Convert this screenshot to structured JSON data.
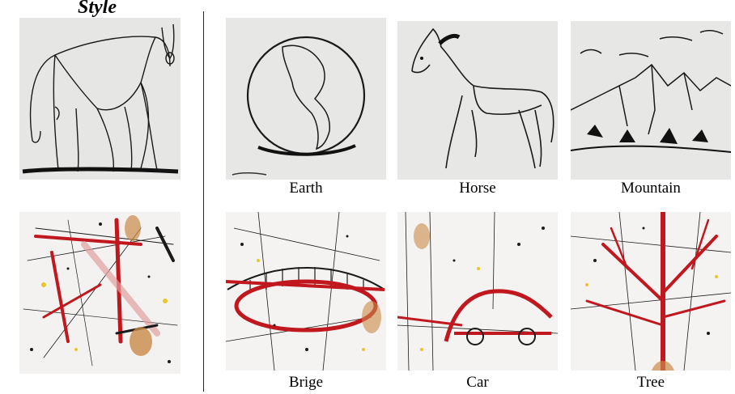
{
  "style_title": "Style",
  "captions": {
    "earth": "Earth",
    "horse": "Horse",
    "mountain": "Mountain",
    "bridge": "Brige",
    "car": "Car",
    "tree": "Tree"
  },
  "colors": {
    "paper_gray": "#e7e7e5",
    "paper_white": "#f5f3f1",
    "ink": "#1a1a1a",
    "red": "#c0181e",
    "ochre": "#c98a48",
    "yellow": "#e8c62a",
    "teal": "#3b6f7a"
  }
}
